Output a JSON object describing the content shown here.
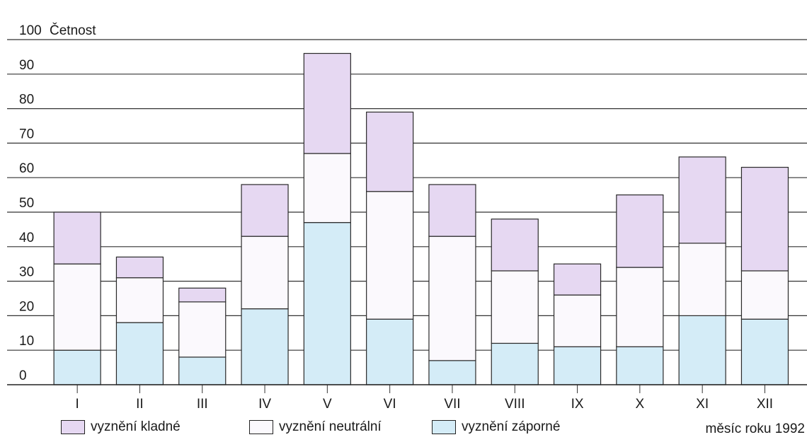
{
  "chart_data": {
    "type": "bar",
    "stacked": true,
    "ylabel": "Četnost",
    "xlabel": "měsíc roku 1992",
    "ylim": [
      0,
      100
    ],
    "yticks": [
      0,
      10,
      20,
      30,
      40,
      50,
      60,
      70,
      80,
      90,
      100
    ],
    "grid": true,
    "legend_position": "bottom",
    "categories": [
      "I",
      "II",
      "III",
      "IV",
      "V",
      "VI",
      "VII",
      "VIII",
      "IX",
      "X",
      "XI",
      "XII"
    ],
    "series": [
      {
        "name": "vyznění záporné",
        "color": "#d4ecf7",
        "values": [
          10,
          18,
          8,
          22,
          47,
          19,
          7,
          12,
          11,
          11,
          20,
          19
        ]
      },
      {
        "name": "vyznění neutrální",
        "color": "#fbf9fd",
        "values": [
          25,
          13,
          16,
          21,
          20,
          37,
          36,
          21,
          15,
          23,
          21,
          14
        ]
      },
      {
        "name": "vyznění kladné",
        "color": "#e6d8f2",
        "values": [
          15,
          6,
          4,
          15,
          29,
          23,
          15,
          15,
          9,
          21,
          25,
          30
        ]
      }
    ]
  }
}
